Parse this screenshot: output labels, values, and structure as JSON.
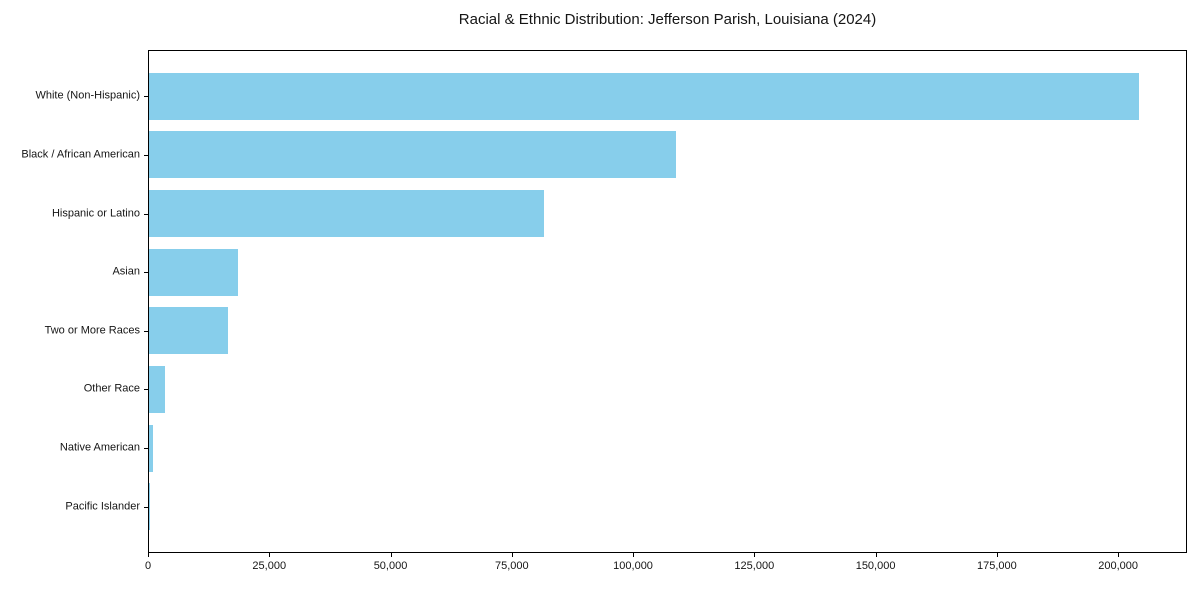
{
  "chart_data": {
    "type": "bar",
    "orientation": "horizontal",
    "title": "Racial & Ethnic Distribution: Jefferson Parish, Louisiana (2024)",
    "categories": [
      "White (Non-Hispanic)",
      "Black / African American",
      "Hispanic or Latino",
      "Asian",
      "Two or More Races",
      "Other Race",
      "Native American",
      "Pacific Islander"
    ],
    "values": [
      204000,
      108600,
      81400,
      18300,
      16300,
      3300,
      800,
      100
    ],
    "xlabel": "",
    "ylabel": "",
    "xlim": [
      0,
      214200
    ],
    "x_ticks": [
      0,
      25000,
      50000,
      75000,
      100000,
      125000,
      150000,
      175000,
      200000
    ],
    "x_tick_labels": [
      "0",
      "25,000",
      "50,000",
      "75,000",
      "100,000",
      "125,000",
      "150,000",
      "175,000",
      "200,000"
    ],
    "bar_color": "#87CEEB",
    "spine_color": "#000000",
    "background_color": "#ffffff",
    "grid": false,
    "legend": false,
    "bar_relative_height": 0.8,
    "categories_order": "top-to-bottom"
  }
}
